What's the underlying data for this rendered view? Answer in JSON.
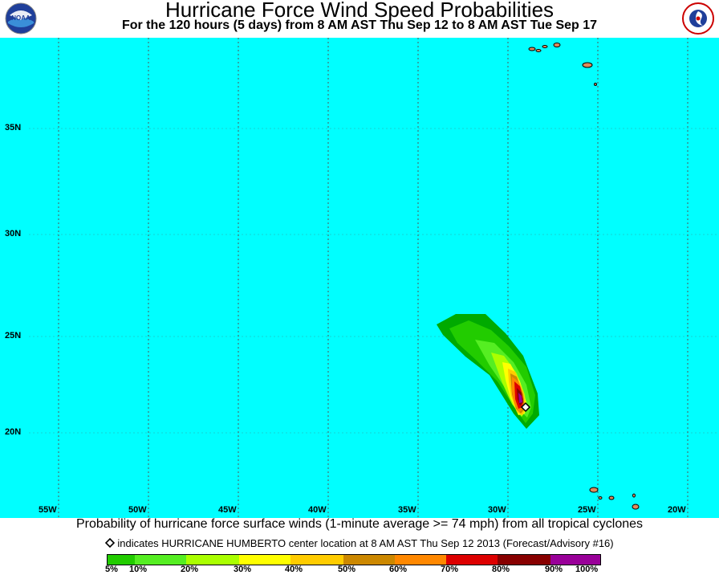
{
  "header": {
    "title": "Hurricane Force Wind Speed Probabilities",
    "subtitle": "For the 120 hours (5 days) from 8 AM AST Thu Sep 12 to 8 AM AST Tue Sep 17",
    "left_logo": "noaa-logo",
    "right_logo": "national-weather-service-logo"
  },
  "map": {
    "background_color": "#00ffff",
    "lat_labels": [
      "35N",
      "30N",
      "25N",
      "20N"
    ],
    "lon_labels": [
      "55W",
      "50W",
      "45W",
      "40W",
      "35W",
      "30W",
      "25W",
      "20W"
    ],
    "storm_marker": "storm-center-diamond"
  },
  "footer": {
    "line1": "Probability of hurricane force surface winds (1-minute average >= 74 mph) from all tropical cyclones",
    "line2": "indicates HURRICANE HUMBERTO center location at 8 AM AST Thu Sep 12 2013 (Forecast/Advisory #16)"
  },
  "legend": {
    "labels": [
      "5%",
      "10%",
      "20%",
      "30%",
      "40%",
      "50%",
      "60%",
      "70%",
      "80%",
      "90%",
      "100%"
    ],
    "colors": [
      "#00aa00",
      "#22cc00",
      "#55ee22",
      "#aaff00",
      "#ffff00",
      "#ffcc00",
      "#cc8800",
      "#ff8800",
      "#dd0000",
      "#880000",
      "#990099"
    ]
  }
}
